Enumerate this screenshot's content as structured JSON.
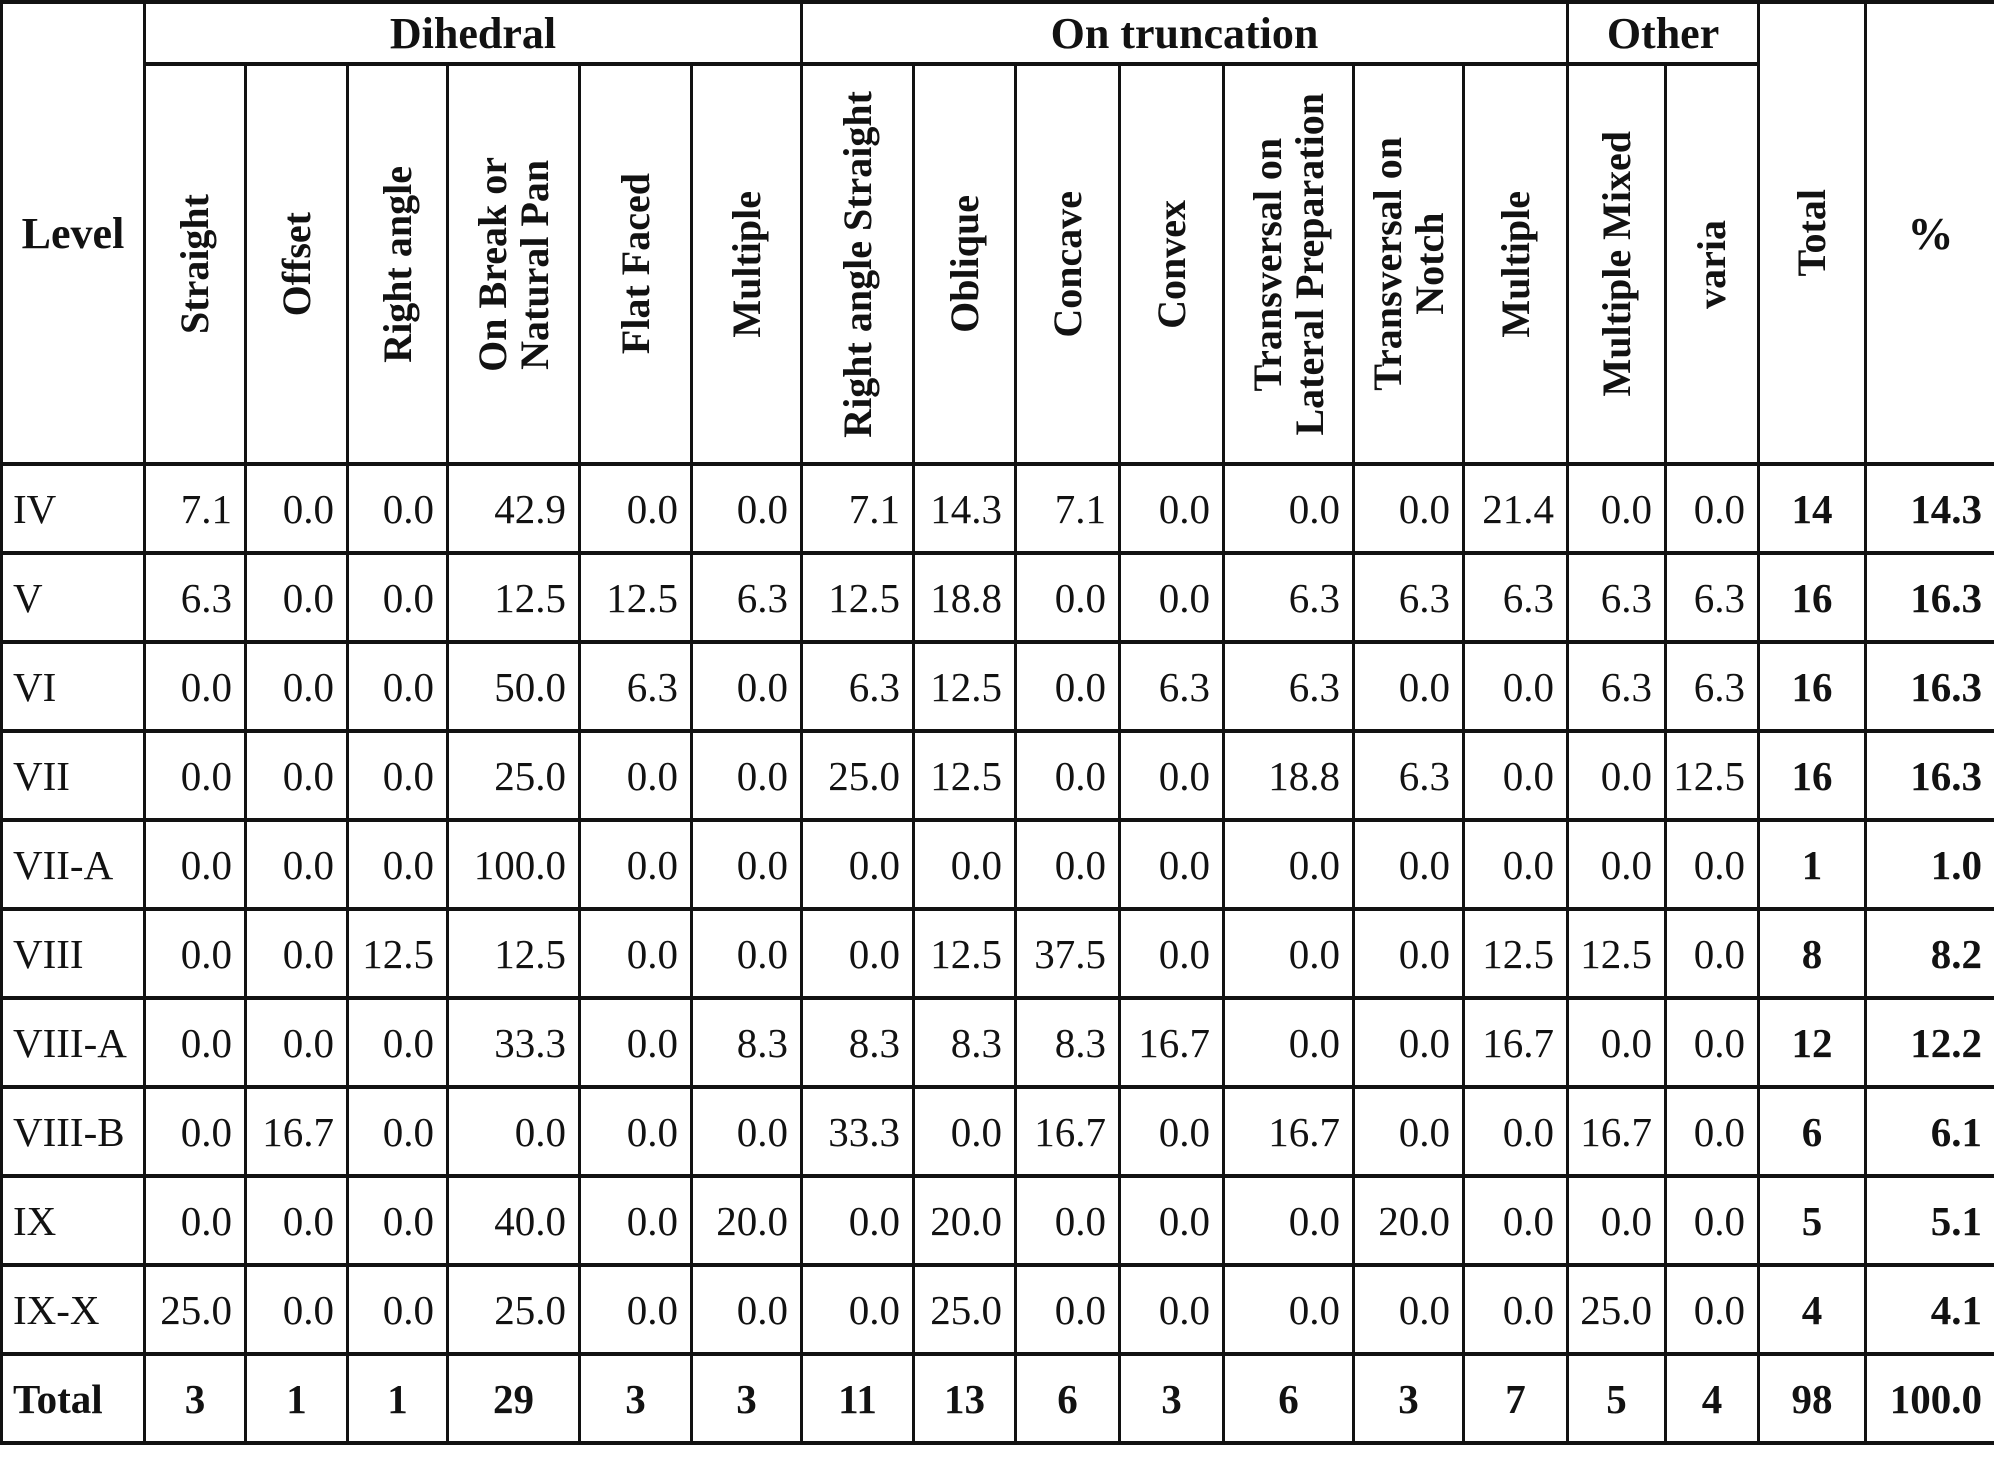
{
  "table": {
    "corner_header": "Level",
    "groups": [
      {
        "label": "Dihedral",
        "span": 6
      },
      {
        "label": "On truncation",
        "span": 7
      },
      {
        "label": "Other",
        "span": 2
      }
    ],
    "columns": [
      "Straight",
      "Offset",
      "Right angle",
      "On Break or\nNatural Pan",
      "Flat Faced",
      "Multiple",
      "Right angle Straight",
      "Oblique",
      "Concave",
      "Convex",
      "Transversal on\nLateral Preparation",
      "Transversal on\nNotch",
      "Multiple",
      "Multiple Mixed",
      "varia"
    ],
    "total_header": "Total",
    "percent_header": "%",
    "rows": [
      {
        "level": "IV",
        "values": [
          "7.1",
          "0.0",
          "0.0",
          "42.9",
          "0.0",
          "0.0",
          "7.1",
          "14.3",
          "7.1",
          "0.0",
          "0.0",
          "0.0",
          "21.4",
          "0.0",
          "0.0"
        ],
        "total": "14",
        "percent": "14.3"
      },
      {
        "level": "V",
        "values": [
          "6.3",
          "0.0",
          "0.0",
          "12.5",
          "12.5",
          "6.3",
          "12.5",
          "18.8",
          "0.0",
          "0.0",
          "6.3",
          "6.3",
          "6.3",
          "6.3",
          "6.3"
        ],
        "total": "16",
        "percent": "16.3"
      },
      {
        "level": "VI",
        "values": [
          "0.0",
          "0.0",
          "0.0",
          "50.0",
          "6.3",
          "0.0",
          "6.3",
          "12.5",
          "0.0",
          "6.3",
          "6.3",
          "0.0",
          "0.0",
          "6.3",
          "6.3"
        ],
        "total": "16",
        "percent": "16.3"
      },
      {
        "level": "VII",
        "values": [
          "0.0",
          "0.0",
          "0.0",
          "25.0",
          "0.0",
          "0.0",
          "25.0",
          "12.5",
          "0.0",
          "0.0",
          "18.8",
          "6.3",
          "0.0",
          "0.0",
          "12.5"
        ],
        "total": "16",
        "percent": "16.3"
      },
      {
        "level": "VII-A",
        "values": [
          "0.0",
          "0.0",
          "0.0",
          "100.0",
          "0.0",
          "0.0",
          "0.0",
          "0.0",
          "0.0",
          "0.0",
          "0.0",
          "0.0",
          "0.0",
          "0.0",
          "0.0"
        ],
        "total": "1",
        "percent": "1.0"
      },
      {
        "level": "VIII",
        "values": [
          "0.0",
          "0.0",
          "12.5",
          "12.5",
          "0.0",
          "0.0",
          "0.0",
          "12.5",
          "37.5",
          "0.0",
          "0.0",
          "0.0",
          "12.5",
          "12.5",
          "0.0"
        ],
        "total": "8",
        "percent": "8.2"
      },
      {
        "level": "VIII-A",
        "values": [
          "0.0",
          "0.0",
          "0.0",
          "33.3",
          "0.0",
          "8.3",
          "8.3",
          "8.3",
          "8.3",
          "16.7",
          "0.0",
          "0.0",
          "16.7",
          "0.0",
          "0.0"
        ],
        "total": "12",
        "percent": "12.2"
      },
      {
        "level": "VIII-B",
        "values": [
          "0.0",
          "16.7",
          "0.0",
          "0.0",
          "0.0",
          "0.0",
          "33.3",
          "0.0",
          "16.7",
          "0.0",
          "16.7",
          "0.0",
          "0.0",
          "16.7",
          "0.0"
        ],
        "total": "6",
        "percent": "6.1"
      },
      {
        "level": "IX",
        "values": [
          "0.0",
          "0.0",
          "0.0",
          "40.0",
          "0.0",
          "20.0",
          "0.0",
          "20.0",
          "0.0",
          "0.0",
          "0.0",
          "20.0",
          "0.0",
          "0.0",
          "0.0"
        ],
        "total": "5",
        "percent": "5.1"
      },
      {
        "level": "IX-X",
        "values": [
          "25.0",
          "0.0",
          "0.0",
          "25.0",
          "0.0",
          "0.0",
          "0.0",
          "25.0",
          "0.0",
          "0.0",
          "0.0",
          "0.0",
          "0.0",
          "25.0",
          "0.0"
        ],
        "total": "4",
        "percent": "4.1"
      }
    ],
    "totals_row": {
      "level": "Total",
      "values": [
        "3",
        "1",
        "1",
        "29",
        "3",
        "3",
        "11",
        "13",
        "6",
        "3",
        "6",
        "3",
        "7",
        "5",
        "4"
      ],
      "total": "98",
      "percent": "100.0"
    }
  }
}
